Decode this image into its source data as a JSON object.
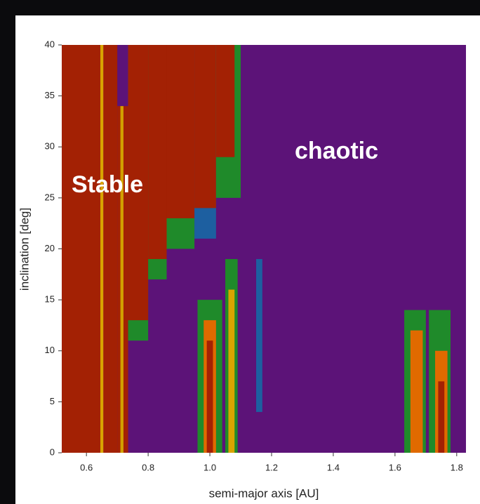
{
  "chart_data": {
    "type": "heatmap",
    "x_label": "semi-major axis [AU]",
    "y_label": "inclination [deg]",
    "xlim": [
      0.52,
      1.83
    ],
    "ylim": [
      0,
      40
    ],
    "xticks": [
      0.6,
      0.8,
      {
        "value": 1,
        "label": "1.0"
      },
      1.2,
      1.4,
      1.6,
      1.8
    ],
    "yticks": [
      0,
      5,
      10,
      15,
      20,
      25,
      30,
      35,
      40
    ],
    "background_color": "#5c1378",
    "regions": [
      {
        "x": [
          0.52,
          0.645
        ],
        "y": [
          0,
          40
        ],
        "color": "#a32104"
      },
      {
        "x": [
          0.645,
          0.655
        ],
        "y": [
          0,
          40
        ],
        "color": "#d9a400"
      },
      {
        "x": [
          0.655,
          0.7
        ],
        "y": [
          0,
          40
        ],
        "color": "#a32104"
      },
      {
        "x": [
          0.7,
          0.735
        ],
        "y": [
          0,
          34
        ],
        "color": "#a32104"
      },
      {
        "x": [
          0.71,
          0.72
        ],
        "y": [
          0,
          34
        ],
        "color": "#d2a000"
      },
      {
        "x": [
          0.735,
          0.8
        ],
        "y": [
          11,
          40
        ],
        "color": "#1f8a2a"
      },
      {
        "x": [
          0.735,
          0.8
        ],
        "y": [
          13,
          40
        ],
        "color": "#a32104"
      },
      {
        "x": [
          0.8,
          0.86
        ],
        "y": [
          17,
          40
        ],
        "color": "#1f8a2a"
      },
      {
        "x": [
          0.8,
          0.86
        ],
        "y": [
          19,
          40
        ],
        "color": "#a32104"
      },
      {
        "x": [
          0.86,
          0.95
        ],
        "y": [
          20,
          40
        ],
        "color": "#1f8a2a"
      },
      {
        "x": [
          0.86,
          0.95
        ],
        "y": [
          23,
          40
        ],
        "color": "#a32104"
      },
      {
        "x": [
          0.95,
          1.02
        ],
        "y": [
          21,
          40
        ],
        "color": "#1d5fa0"
      },
      {
        "x": [
          0.95,
          1.02
        ],
        "y": [
          24,
          40
        ],
        "color": "#a32104"
      },
      {
        "x": [
          1.02,
          1.1
        ],
        "y": [
          25,
          40
        ],
        "color": "#1f8a2a"
      },
      {
        "x": [
          1.02,
          1.08
        ],
        "y": [
          29,
          40
        ],
        "color": "#a32104"
      },
      {
        "x": [
          0.96,
          1.04
        ],
        "y": [
          0,
          15
        ],
        "color": "#1f8a2a"
      },
      {
        "x": [
          0.98,
          1.02
        ],
        "y": [
          0,
          13
        ],
        "color": "#e06a00"
      },
      {
        "x": [
          0.99,
          1.01
        ],
        "y": [
          0,
          11
        ],
        "color": "#a32104"
      },
      {
        "x": [
          1.05,
          1.09
        ],
        "y": [
          0,
          19
        ],
        "color": "#1f8a2a"
      },
      {
        "x": [
          1.06,
          1.08
        ],
        "y": [
          0,
          16
        ],
        "color": "#d9a400"
      },
      {
        "x": [
          1.15,
          1.17
        ],
        "y": [
          4,
          19
        ],
        "color": "#1d5fa0"
      },
      {
        "x": [
          1.63,
          1.7
        ],
        "y": [
          0,
          14
        ],
        "color": "#1f8a2a"
      },
      {
        "x": [
          1.65,
          1.69
        ],
        "y": [
          0,
          12
        ],
        "color": "#e06a00"
      },
      {
        "x": [
          1.71,
          1.78
        ],
        "y": [
          0,
          14
        ],
        "color": "#1f8a2a"
      },
      {
        "x": [
          1.73,
          1.77
        ],
        "y": [
          0,
          10
        ],
        "color": "#e06a00"
      },
      {
        "x": [
          1.74,
          1.76
        ],
        "y": [
          0,
          7
        ],
        "color": "#a32104"
      }
    ],
    "annotations": [
      {
        "text": "Stable"
      },
      {
        "text": "chaotic"
      }
    ]
  }
}
